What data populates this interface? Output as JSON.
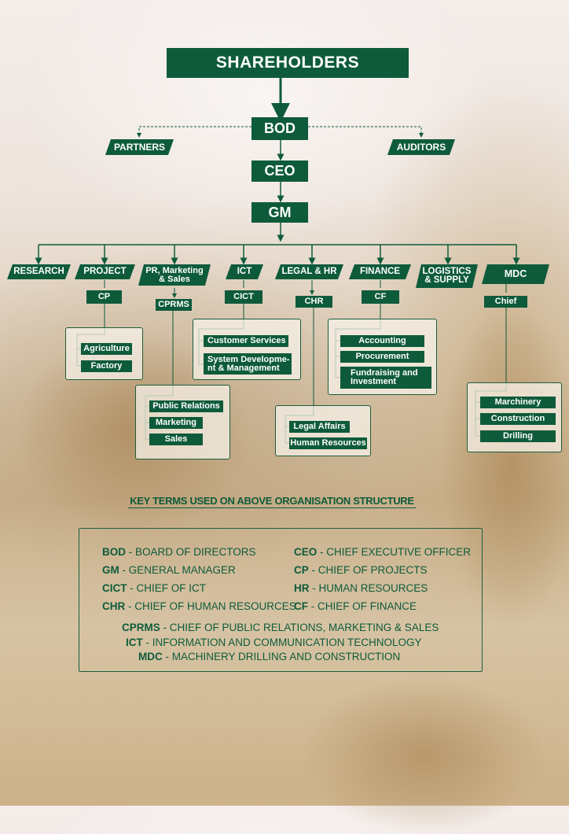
{
  "chart": {
    "top": {
      "shareholders": "SHAREHOLDERS",
      "bod": "BOD",
      "partners": "PARTNERS",
      "auditors": "AUDITORS",
      "ceo": "CEO",
      "gm": "GM"
    },
    "departments": [
      {
        "key": "research",
        "label": "RESEARCH"
      },
      {
        "key": "project",
        "label": "PROJECT",
        "head": "CP",
        "units": [
          "Agriculture",
          "Factory"
        ]
      },
      {
        "key": "pr",
        "label": "PR, Marketing\n& Sales",
        "head": "CPRMS",
        "units": [
          "Public Relations",
          "Marketing",
          "Sales"
        ]
      },
      {
        "key": "ict",
        "label": "ICT",
        "head": "CICT",
        "units": [
          "Customer Services",
          "System Developme-\nnt & Management"
        ]
      },
      {
        "key": "legal",
        "label": "LEGAL & HR",
        "head": "CHR",
        "units": [
          "Legal Affairs",
          "Human Resources"
        ]
      },
      {
        "key": "finance",
        "label": "FINANCE",
        "head": "CF",
        "units": [
          "Accounting",
          "Procurement",
          "Fundraising and\nInvestment"
        ]
      },
      {
        "key": "logistics",
        "label": "LOGISTICS\n& SUPPLY"
      },
      {
        "key": "mdc",
        "label": "MDC",
        "head": "Chief",
        "units": [
          "Marchinery",
          "Construction",
          "Drilling"
        ]
      }
    ]
  },
  "key_terms": {
    "title": "KEY TERMS USED ON ABOVE ORGANISATION STRUCTURE",
    "left_column": [
      {
        "abbr": "BOD",
        "def": "BOARD OF DIRECTORS"
      },
      {
        "abbr": "GM",
        "def": "GENERAL MANAGER"
      },
      {
        "abbr": "CICT",
        "def": "CHIEF OF ICT"
      },
      {
        "abbr": "CHR",
        "def": "CHIEF OF HUMAN RESOURCES"
      }
    ],
    "right_column": [
      {
        "abbr": "CEO",
        "def": "CHIEF EXECUTIVE OFFICER"
      },
      {
        "abbr": "CP",
        "def": "CHIEF OF PROJECTS"
      },
      {
        "abbr": "HR",
        "def": "HUMAN RESOURCES"
      },
      {
        "abbr": "CF",
        "def": "CHIEF OF FINANCE"
      }
    ],
    "bottom": [
      {
        "abbr": "CPRMS",
        "def": "CHIEF OF PUBLIC RELATIONS, MARKETING & SALES"
      },
      {
        "abbr": "ICT",
        "def": "INFORMATION AND COMMUNICATION TECHNOLOGY"
      },
      {
        "abbr": "MDC",
        "def": "MACHINERY DRILLING AND CONSTRUCTION"
      }
    ]
  },
  "colors": {
    "brand_green": "#0e5b3b",
    "panel_border": "#1b5e3c"
  }
}
